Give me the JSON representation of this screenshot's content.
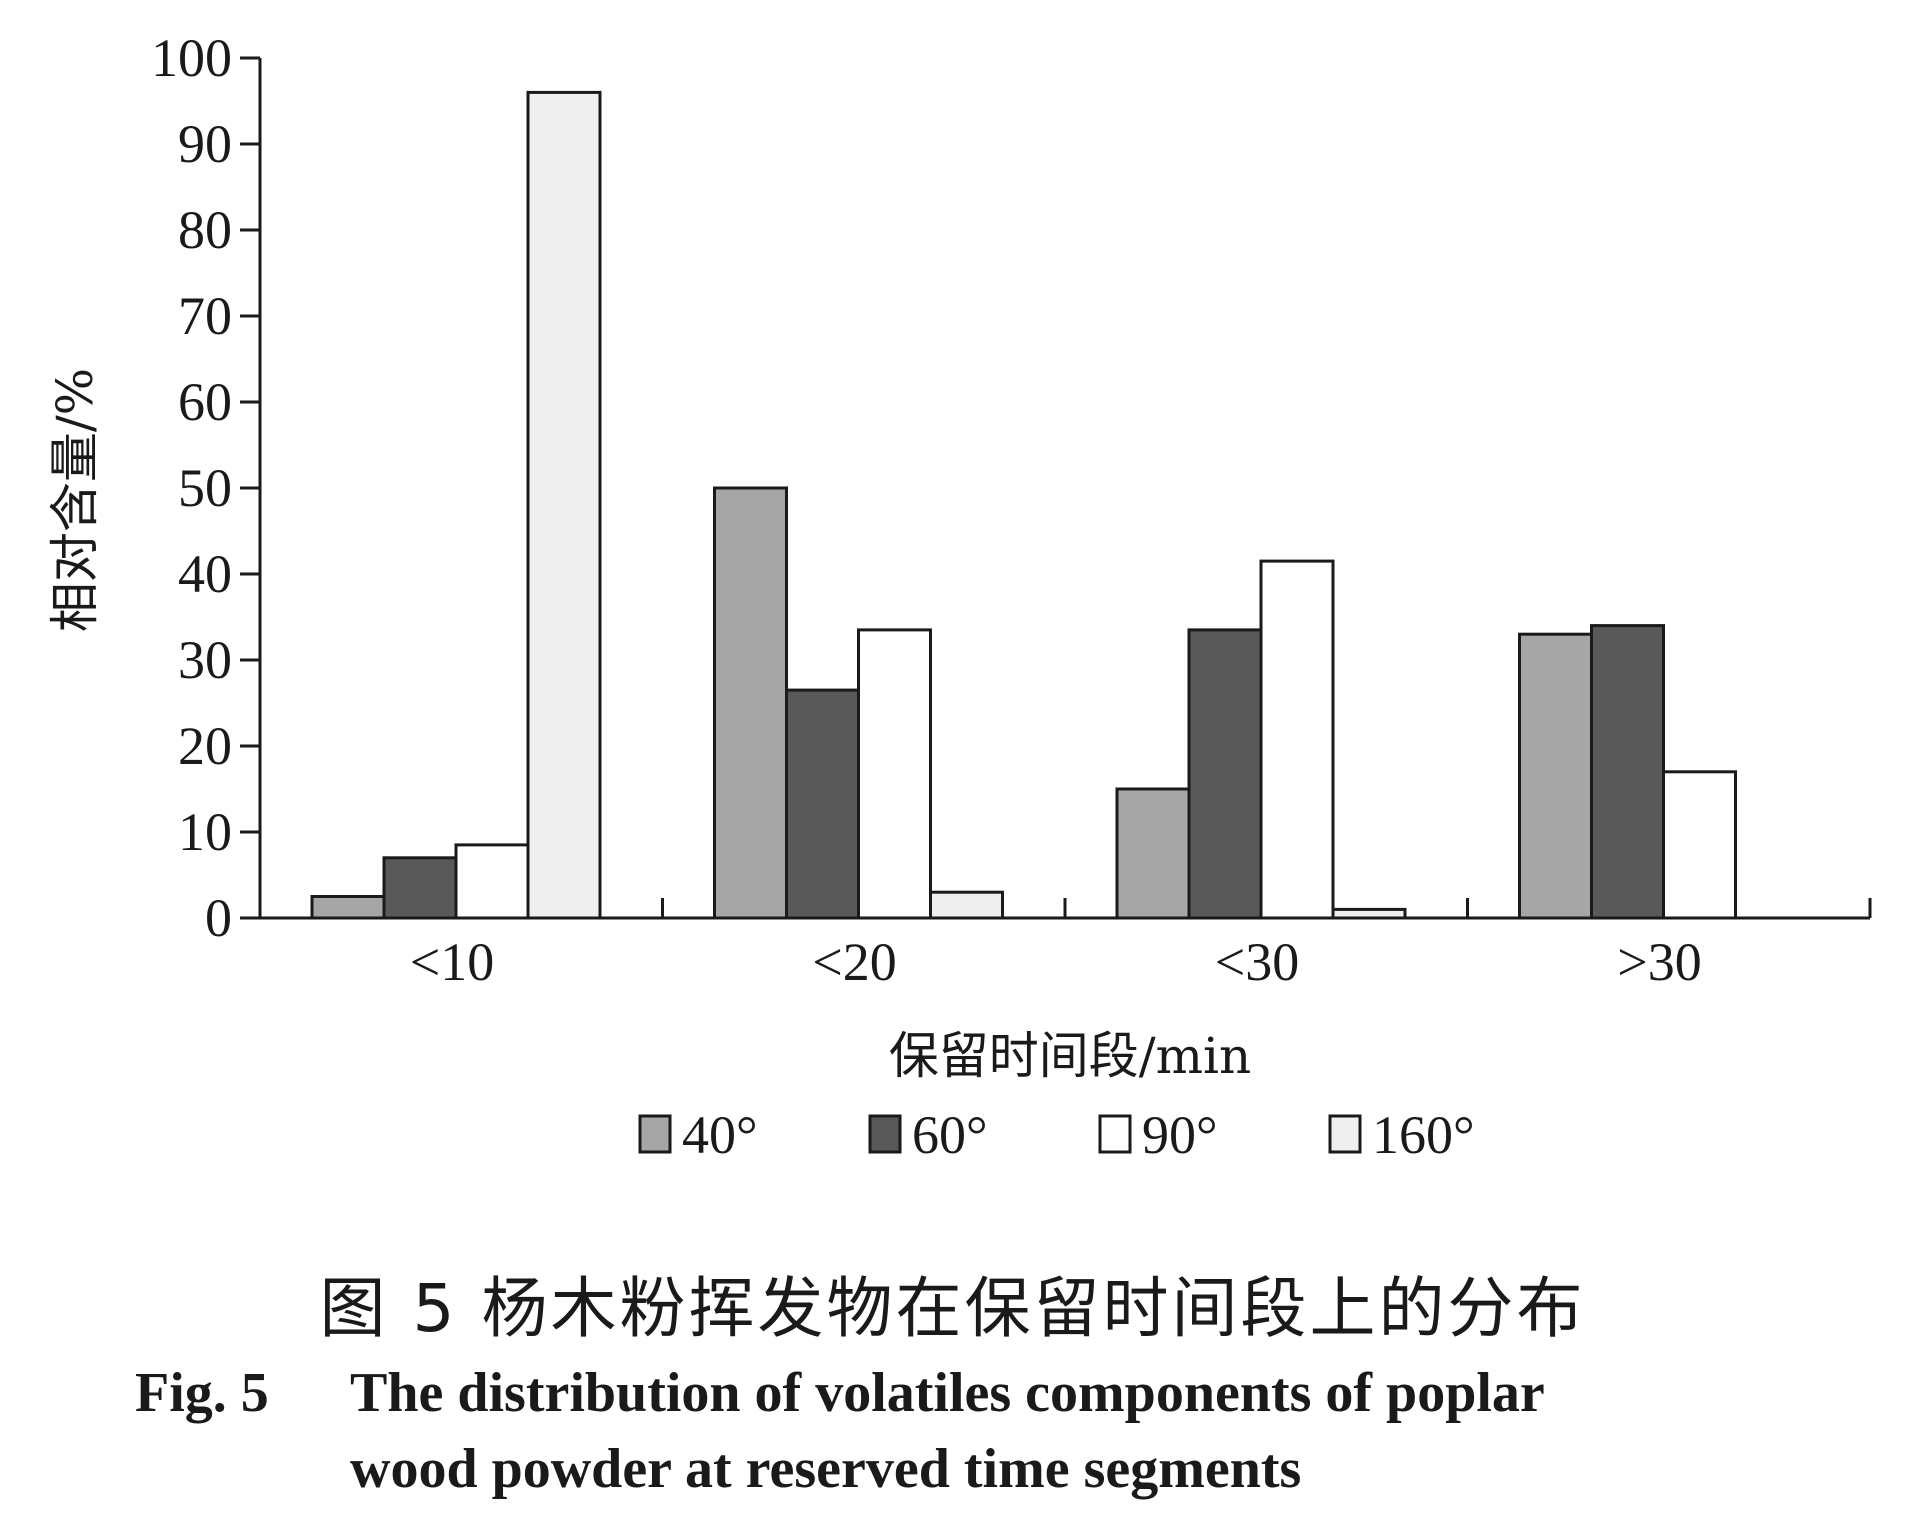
{
  "chart_data": {
    "type": "bar",
    "categories": [
      "<10",
      "<20",
      "<30",
      ">30"
    ],
    "series": [
      {
        "name": "40°",
        "color": "#a6a6a6",
        "values": [
          2.5,
          50,
          15,
          33
        ]
      },
      {
        "name": "60°",
        "color": "#595959",
        "values": [
          7,
          26.5,
          33.5,
          34
        ]
      },
      {
        "name": "90°",
        "color": "#ffffff",
        "values": [
          8.5,
          33.5,
          41.5,
          17
        ]
      },
      {
        "name": "160°",
        "color": "#efefef",
        "values": [
          96,
          3,
          1,
          0
        ]
      }
    ],
    "xlabel": "保留时间段/min",
    "ylabel": "相对含量/%",
    "ylim": [
      0,
      100
    ],
    "yticks": [
      0,
      10,
      20,
      30,
      40,
      50,
      60,
      70,
      80,
      90,
      100
    ],
    "grid": false,
    "legend_position": "bottom"
  },
  "caption": {
    "chinese": "图 5  杨木粉挥发物在保留时间段上的分布",
    "fig_label": "Fig. 5",
    "english_line1": "The distribution of volatiles components of poplar",
    "english_line2": "wood powder at reserved time segments"
  }
}
